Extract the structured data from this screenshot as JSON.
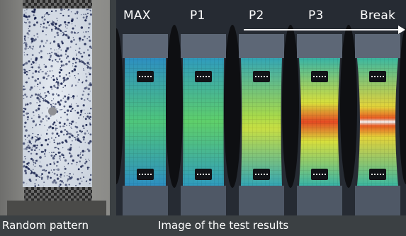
{
  "captions": {
    "left": "Random pattern",
    "right": "Image of the test results"
  },
  "stages": [
    "MAX",
    "P1",
    "P2",
    "P3",
    "Break"
  ],
  "colors": {
    "background": "#3b4043",
    "arrow": "#ffffff",
    "heat_low": "#1f5fa8",
    "heat_mid": "#3fc07a",
    "heat_high": "#e8e239",
    "heat_peak": "#e44a23"
  }
}
